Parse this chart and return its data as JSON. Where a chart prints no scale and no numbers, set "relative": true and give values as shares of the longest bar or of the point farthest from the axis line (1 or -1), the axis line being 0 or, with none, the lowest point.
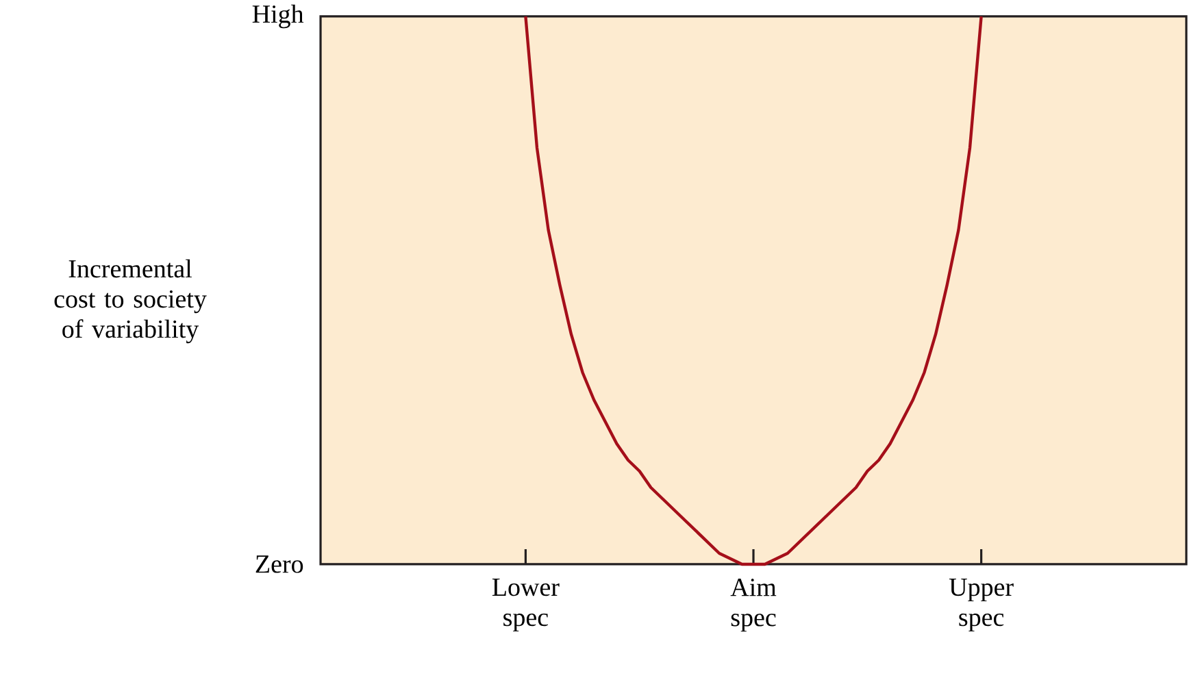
{
  "chart_data": {
    "type": "line",
    "relative": true,
    "ylabel": "Incremental cost to society of variability",
    "annotations": [
      "High",
      "Zero"
    ],
    "categories": [
      null,
      null,
      null,
      null,
      null,
      null,
      null,
      null,
      null,
      null,
      null,
      null,
      null,
      null,
      null,
      null,
      null,
      null,
      "Lower spec",
      null,
      null,
      null,
      null,
      null,
      null,
      null,
      null,
      null,
      null,
      null,
      null,
      null,
      null,
      null,
      null,
      null,
      null,
      null,
      "Aim spec",
      null,
      null,
      null,
      null,
      null,
      null,
      null,
      null,
      null,
      null,
      null,
      null,
      null,
      null,
      null,
      null,
      null,
      null,
      null,
      "Upper spec",
      null,
      null,
      null,
      null,
      null,
      null,
      null,
      null,
      null,
      null,
      null,
      null,
      null,
      null,
      null,
      null,
      null,
      null
    ],
    "series": [
      {
        "color": "#a50f1a",
        "values": [
          null,
          null,
          null,
          null,
          null,
          null,
          null,
          null,
          null,
          null,
          null,
          null,
          null,
          null,
          null,
          null,
          null,
          null,
          1.0,
          0.76,
          0.61,
          0.51,
          0.42,
          0.35,
          0.3,
          0.26,
          0.22,
          0.19,
          0.17,
          0.14,
          0.12,
          0.1,
          0.08,
          0.06,
          0.04,
          0.02,
          0.01,
          0.0,
          0,
          0.0,
          0.01,
          0.02,
          0.04,
          0.06,
          0.08,
          0.1,
          0.12,
          0.14,
          0.17,
          0.19,
          0.22,
          0.26,
          0.3,
          0.35,
          0.42,
          0.51,
          0.61,
          0.76,
          1.0,
          null,
          null,
          null,
          null,
          null,
          null,
          null,
          null,
          null,
          null,
          null,
          null,
          null,
          null,
          null,
          null,
          null,
          null
        ]
      }
    ],
    "grid": false,
    "marker": "none",
    "line_style": "solid"
  }
}
